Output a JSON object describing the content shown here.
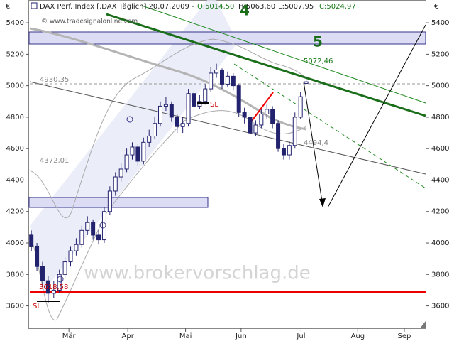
{
  "header": {
    "instrument": "DAX Perf. Index [.DAX  Täglich] 20.07.2009 -",
    "open": "O:5014,50",
    "high": "H:5063,60",
    "low": "L:5007,95",
    "close": "C:5024,97",
    "copyright": "© www.tradesignalonline.com"
  },
  "chart_data": {
    "type": "candlestick",
    "open": [
      4050,
      3980,
      3850,
      3760,
      3680,
      3700,
      3800,
      3880,
      3950,
      3990,
      4080,
      4130,
      4050,
      4020,
      4200,
      4330,
      4420,
      4470,
      4560,
      4610,
      4520,
      4640,
      4680,
      4760,
      4870,
      4880,
      4800,
      4740,
      4760,
      4950,
      4870,
      4900,
      4980,
      5080,
      5100,
      5010,
      5060,
      5000,
      4830,
      4800,
      4700,
      4750,
      4820,
      4850,
      4760,
      4600,
      4560,
      4620,
      4800,
      5014.5
    ],
    "high": [
      4080,
      4000,
      3880,
      3790,
      3760,
      3830,
      3910,
      3980,
      4030,
      4110,
      4170,
      4150,
      4080,
      4230,
      4360,
      4450,
      4510,
      4600,
      4640,
      4630,
      4670,
      4720,
      4800,
      4900,
      4930,
      4900,
      4820,
      4800,
      4980,
      4970,
      4940,
      5010,
      5120,
      5140,
      5110,
      5090,
      5080,
      5010,
      4860,
      4820,
      4780,
      4850,
      4880,
      4870,
      4780,
      4630,
      4650,
      4830,
      4960,
      5063.6
    ],
    "low": [
      3950,
      3820,
      3720,
      3618.58,
      3650,
      3680,
      3780,
      3850,
      3920,
      3970,
      4050,
      4020,
      3990,
      4000,
      4180,
      4300,
      4390,
      4450,
      4530,
      4490,
      4500,
      4610,
      4660,
      4740,
      4840,
      4770,
      4700,
      4700,
      4740,
      4840,
      4850,
      4880,
      4960,
      5050,
      4980,
      4990,
      4970,
      4800,
      4760,
      4670,
      4680,
      4730,
      4790,
      4730,
      4580,
      4530,
      4530,
      4600,
      4790,
      5007.95
    ],
    "close": [
      3980,
      3850,
      3760,
      3680,
      3700,
      3800,
      3880,
      3950,
      3990,
      4080,
      4130,
      4050,
      4020,
      4200,
      4330,
      4420,
      4470,
      4560,
      4610,
      4520,
      4640,
      4680,
      4760,
      4870,
      4880,
      4800,
      4740,
      4760,
      4950,
      4870,
      4900,
      4980,
      5080,
      5100,
      5010,
      5060,
      5000,
      4830,
      4800,
      4700,
      4750,
      4820,
      4850,
      4760,
      4600,
      4560,
      4620,
      4800,
      4930,
      5024.97
    ],
    "color": "#22226e",
    "xlim": [
      -0.4,
      70.3
    ],
    "xticks": [
      {
        "value": 6.7,
        "label": "Mär"
      },
      {
        "value": 17.2,
        "label": "Apr"
      },
      {
        "value": 27.5,
        "label": "Mai"
      },
      {
        "value": 37.4,
        "label": "Jun"
      },
      {
        "value": 48.1,
        "label": "Jul"
      },
      {
        "value": 58.2,
        "label": "Aug"
      },
      {
        "value": 66.5,
        "label": "Sep"
      }
    ],
    "ylim": [
      3458,
      5545
    ],
    "yticks": [
      3600,
      3800,
      4000,
      4200,
      4400,
      4600,
      4800,
      5000,
      5200,
      5400
    ],
    "y_unit": "€",
    "annotations": {
      "wave4": "4",
      "wave5": "5",
      "target": "5072,46",
      "level_high": "4930,35",
      "level_mid": "4372,01",
      "level_low": "4494,4",
      "level_bottom": "3618,58",
      "sl1": "SL",
      "sl2": "SL",
      "watermark": "www.brokervorschlag.de"
    }
  }
}
